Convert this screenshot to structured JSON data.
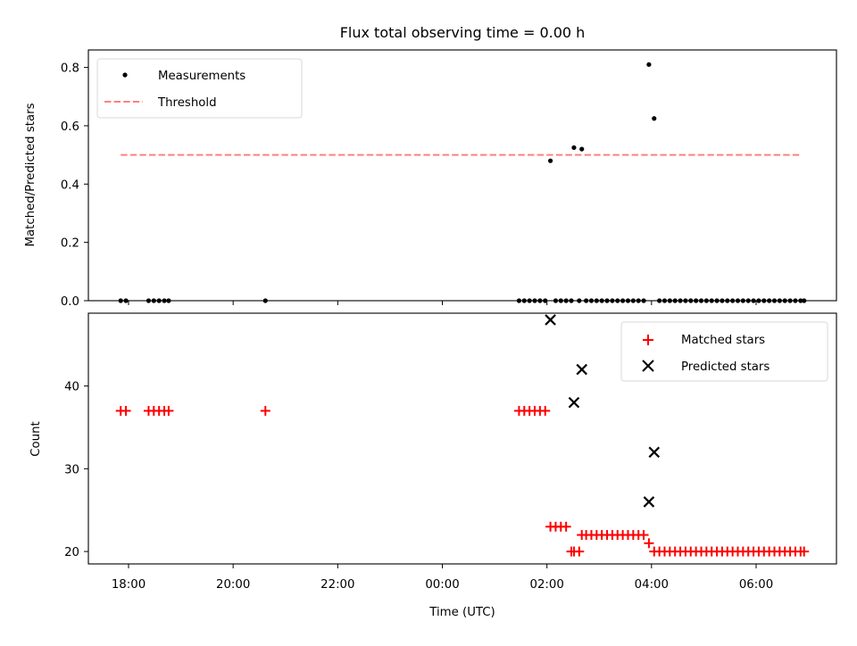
{
  "chart_data": [
    {
      "type": "scatter",
      "title": "Flux total observing time = 0.00 h",
      "xlabel": "",
      "ylabel": "Matched/Predicted stars",
      "ylim": [
        0,
        0.86
      ],
      "yticks": [
        "0.0",
        "0.2",
        "0.4",
        "0.6",
        "0.8"
      ],
      "ytick_values": [
        0,
        0.2,
        0.4,
        0.6,
        0.8
      ],
      "legend_position": "top-left",
      "series": [
        {
          "name": "Measurements",
          "marker": "dot",
          "color": "#000000",
          "points": [
            [
              "17:51",
              0
            ],
            [
              "17:57",
              0
            ],
            [
              "18:23",
              0
            ],
            [
              "18:29",
              0
            ],
            [
              "18:35",
              0
            ],
            [
              "18:41",
              0
            ],
            [
              "18:46",
              0
            ],
            [
              "20:37",
              0
            ],
            [
              "01:28",
              0
            ],
            [
              "01:34",
              0
            ],
            [
              "01:40",
              0
            ],
            [
              "01:46",
              0
            ],
            [
              "01:52",
              0
            ],
            [
              "01:58",
              0
            ],
            [
              "02:04",
              0.48
            ],
            [
              "02:10",
              0
            ],
            [
              "02:16",
              0
            ],
            [
              "02:22",
              0
            ],
            [
              "02:28",
              0
            ],
            [
              "02:31",
              0.525
            ],
            [
              "02:37",
              0
            ],
            [
              "02:40",
              0.52
            ],
            [
              "02:45",
              0
            ],
            [
              "02:51",
              0
            ],
            [
              "02:57",
              0
            ],
            [
              "03:03",
              0
            ],
            [
              "03:09",
              0
            ],
            [
              "03:15",
              0
            ],
            [
              "03:21",
              0
            ],
            [
              "03:27",
              0
            ],
            [
              "03:33",
              0
            ],
            [
              "03:39",
              0
            ],
            [
              "03:45",
              0
            ],
            [
              "03:51",
              0
            ],
            [
              "03:57",
              0.81
            ],
            [
              "04:03",
              0.625
            ],
            [
              "04:09",
              0
            ],
            [
              "04:15",
              0
            ],
            [
              "04:21",
              0
            ],
            [
              "04:27",
              0
            ],
            [
              "04:33",
              0
            ],
            [
              "04:39",
              0
            ],
            [
              "04:45",
              0
            ],
            [
              "04:51",
              0
            ],
            [
              "04:57",
              0
            ],
            [
              "05:03",
              0
            ],
            [
              "05:09",
              0
            ],
            [
              "05:15",
              0
            ],
            [
              "05:21",
              0
            ],
            [
              "05:27",
              0
            ],
            [
              "05:33",
              0
            ],
            [
              "05:39",
              0
            ],
            [
              "05:45",
              0
            ],
            [
              "05:51",
              0
            ],
            [
              "05:57",
              0
            ],
            [
              "06:03",
              0
            ],
            [
              "06:09",
              0
            ],
            [
              "06:15",
              0
            ],
            [
              "06:21",
              0
            ],
            [
              "06:27",
              0
            ],
            [
              "06:33",
              0
            ],
            [
              "06:39",
              0
            ],
            [
              "06:45",
              0
            ],
            [
              "06:51",
              0
            ],
            [
              "06:55",
              0
            ]
          ]
        },
        {
          "name": "Threshold",
          "line": "dashed",
          "color": "#ff8080",
          "points": [
            [
              "17:51",
              0.5
            ],
            [
              "06:51",
              0.5
            ]
          ]
        }
      ]
    },
    {
      "type": "scatter",
      "title": "",
      "xlabel": "Time (UTC)",
      "ylabel": "Count",
      "ylim": [
        18.5,
        48.8
      ],
      "yticks": [
        "20",
        "30",
        "40"
      ],
      "ytick_values": [
        20,
        30,
        40
      ],
      "xticks": [
        "18:00",
        "20:00",
        "22:00",
        "00:00",
        "02:00",
        "04:00",
        "06:00"
      ],
      "legend_position": "top-right",
      "series": [
        {
          "name": "Matched stars",
          "marker": "plus",
          "color": "#ff0000",
          "points": [
            [
              "17:51",
              37
            ],
            [
              "17:57",
              37
            ],
            [
              "18:23",
              37
            ],
            [
              "18:29",
              37
            ],
            [
              "18:35",
              37
            ],
            [
              "18:41",
              37
            ],
            [
              "18:46",
              37
            ],
            [
              "20:37",
              37
            ],
            [
              "01:28",
              37
            ],
            [
              "01:34",
              37
            ],
            [
              "01:40",
              37
            ],
            [
              "01:46",
              37
            ],
            [
              "01:52",
              37
            ],
            [
              "01:58",
              37
            ],
            [
              "02:04",
              23
            ],
            [
              "02:10",
              23
            ],
            [
              "02:16",
              23
            ],
            [
              "02:22",
              23
            ],
            [
              "02:28",
              20
            ],
            [
              "02:31",
              20
            ],
            [
              "02:37",
              20
            ],
            [
              "02:40",
              22
            ],
            [
              "02:45",
              22
            ],
            [
              "02:51",
              22
            ],
            [
              "02:57",
              22
            ],
            [
              "03:03",
              22
            ],
            [
              "03:09",
              22
            ],
            [
              "03:15",
              22
            ],
            [
              "03:21",
              22
            ],
            [
              "03:27",
              22
            ],
            [
              "03:33",
              22
            ],
            [
              "03:39",
              22
            ],
            [
              "03:45",
              22
            ],
            [
              "03:51",
              22
            ],
            [
              "03:57",
              21
            ],
            [
              "04:03",
              20
            ],
            [
              "04:09",
              20
            ],
            [
              "04:15",
              20
            ],
            [
              "04:21",
              20
            ],
            [
              "04:27",
              20
            ],
            [
              "04:33",
              20
            ],
            [
              "04:39",
              20
            ],
            [
              "04:45",
              20
            ],
            [
              "04:51",
              20
            ],
            [
              "04:57",
              20
            ],
            [
              "05:03",
              20
            ],
            [
              "05:09",
              20
            ],
            [
              "05:15",
              20
            ],
            [
              "05:21",
              20
            ],
            [
              "05:27",
              20
            ],
            [
              "05:33",
              20
            ],
            [
              "05:39",
              20
            ],
            [
              "05:45",
              20
            ],
            [
              "05:51",
              20
            ],
            [
              "05:57",
              20
            ],
            [
              "06:03",
              20
            ],
            [
              "06:09",
              20
            ],
            [
              "06:15",
              20
            ],
            [
              "06:21",
              20
            ],
            [
              "06:27",
              20
            ],
            [
              "06:33",
              20
            ],
            [
              "06:39",
              20
            ],
            [
              "06:45",
              20
            ],
            [
              "06:51",
              20
            ],
            [
              "06:55",
              20
            ]
          ]
        },
        {
          "name": "Predicted stars",
          "marker": "x",
          "color": "#000000",
          "points": [
            [
              "02:04",
              48
            ],
            [
              "02:31",
              38
            ],
            [
              "02:40",
              42
            ],
            [
              "03:57",
              26
            ],
            [
              "04:03",
              32
            ]
          ]
        }
      ]
    }
  ]
}
